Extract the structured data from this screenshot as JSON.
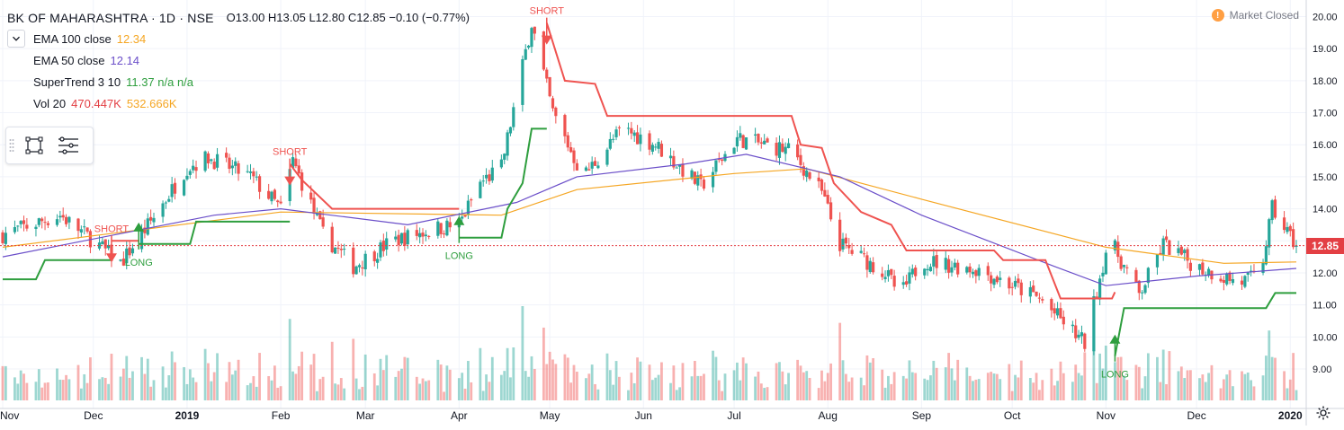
{
  "header": {
    "symbol": "BK OF MAHARASHTRA",
    "interval": "1D",
    "exchange": "NSE",
    "ohlc": "O13.00  H13.05  L12.80  C12.85  −0.10 (−0.77%)"
  },
  "indicators": [
    {
      "label": "EMA 100 close",
      "value": "12.34",
      "color": "#f5a623"
    },
    {
      "label": "EMA 50 close",
      "value": "12.14",
      "color": "#6b4fc9"
    },
    {
      "label": "SuperTrend 3 10",
      "value": "11.37  n/a  n/a",
      "color": "#2e9e3e",
      "value2_color": "#e33f44"
    },
    {
      "label": "Vol 20",
      "value": "470.447K",
      "value2": "532.666K",
      "color": "#e33f44",
      "value2_color": "#f5a623"
    }
  ],
  "status": {
    "text": "Market Closed",
    "icon": "exclamation-icon"
  },
  "last_price": "12.85",
  "colors": {
    "up": "#26a69a",
    "down": "#ef5350",
    "ema100": "#f5a623",
    "ema50": "#6b4fc9",
    "st_up": "#2e9e3e",
    "st_down": "#ef5350"
  },
  "chart_data": {
    "type": "candlestick",
    "title": "BK OF MAHARASHTRA · 1D · NSE",
    "y_ticks": [
      "20.00",
      "19.00",
      "18.00",
      "17.00",
      "16.00",
      "15.00",
      "14.00",
      "13.00",
      "12.00",
      "11.00",
      "10.00",
      "9.00"
    ],
    "x_ticks": [
      "Nov",
      "Dec",
      "2019",
      "Feb",
      "Mar",
      "Apr",
      "May",
      "Jun",
      "Jul",
      "Aug",
      "Sep",
      "Oct",
      "Nov",
      "Dec",
      "2020"
    ],
    "ylim": [
      8.2,
      20.3
    ],
    "last_close": 12.85,
    "anchors": [
      {
        "date": "2018-11-01",
        "close": 13.2
      },
      {
        "date": "2018-11-20",
        "close": 13.8
      },
      {
        "date": "2018-12-01",
        "close": 13.0
      },
      {
        "date": "2018-12-10",
        "close": 12.3
      },
      {
        "date": "2018-12-20",
        "close": 13.6
      },
      {
        "date": "2019-01-01",
        "close": 15.3
      },
      {
        "date": "2019-01-08",
        "close": 15.6
      },
      {
        "date": "2019-01-22",
        "close": 15.0
      },
      {
        "date": "2019-02-01",
        "close": 14.0
      },
      {
        "date": "2019-02-05",
        "close": 15.5
      },
      {
        "date": "2019-02-15",
        "close": 13.2
      },
      {
        "date": "2019-02-25",
        "close": 12.2
      },
      {
        "date": "2019-03-10",
        "close": 13.0
      },
      {
        "date": "2019-03-25",
        "close": 13.4
      },
      {
        "date": "2019-04-01",
        "close": 13.5
      },
      {
        "date": "2019-04-08",
        "close": 14.8
      },
      {
        "date": "2019-04-15",
        "close": 15.3
      },
      {
        "date": "2019-04-25",
        "close": 19.8
      },
      {
        "date": "2019-05-02",
        "close": 17.0
      },
      {
        "date": "2019-05-12",
        "close": 15.0
      },
      {
        "date": "2019-05-25",
        "close": 16.5
      },
      {
        "date": "2019-06-05",
        "close": 16.0
      },
      {
        "date": "2019-06-20",
        "close": 14.7
      },
      {
        "date": "2019-07-02",
        "close": 16.2
      },
      {
        "date": "2019-07-20",
        "close": 15.8
      },
      {
        "date": "2019-07-30",
        "close": 14.5
      },
      {
        "date": "2019-08-05",
        "close": 12.9
      },
      {
        "date": "2019-08-20",
        "close": 12.0
      },
      {
        "date": "2019-08-25",
        "close": 11.3
      },
      {
        "date": "2019-09-01",
        "close": 12.4
      },
      {
        "date": "2019-09-20",
        "close": 12.1
      },
      {
        "date": "2019-10-10",
        "close": 11.2
      },
      {
        "date": "2019-10-25",
        "close": 9.8
      },
      {
        "date": "2019-11-02",
        "close": 13.1
      },
      {
        "date": "2019-11-12",
        "close": 11.3
      },
      {
        "date": "2019-11-20",
        "close": 12.9
      },
      {
        "date": "2019-12-01",
        "close": 12.2
      },
      {
        "date": "2019-12-15",
        "close": 11.7
      },
      {
        "date": "2019-12-22",
        "close": 11.9
      },
      {
        "date": "2019-12-26",
        "close": 14.0
      },
      {
        "date": "2020-01-03",
        "close": 12.85
      }
    ],
    "ema100": [
      {
        "date": "2018-11-01",
        "value": 12.8
      },
      {
        "date": "2019-02-01",
        "value": 13.9
      },
      {
        "date": "2019-04-15",
        "value": 13.8
      },
      {
        "date": "2019-05-10",
        "value": 14.6
      },
      {
        "date": "2019-07-01",
        "value": 15.1
      },
      {
        "date": "2019-07-25",
        "value": 15.25
      },
      {
        "date": "2019-09-01",
        "value": 14.3
      },
      {
        "date": "2019-11-01",
        "value": 12.8
      },
      {
        "date": "2019-12-10",
        "value": 12.3
      },
      {
        "date": "2020-01-03",
        "value": 12.34
      }
    ],
    "ema50": [
      {
        "date": "2018-11-01",
        "value": 12.5
      },
      {
        "date": "2019-01-10",
        "value": 13.8
      },
      {
        "date": "2019-02-01",
        "value": 14.0
      },
      {
        "date": "2019-03-15",
        "value": 13.5
      },
      {
        "date": "2019-04-20",
        "value": 14.2
      },
      {
        "date": "2019-05-10",
        "value": 15.0
      },
      {
        "date": "2019-06-15",
        "value": 15.4
      },
      {
        "date": "2019-07-05",
        "value": 15.7
      },
      {
        "date": "2019-08-05",
        "value": 15.0
      },
      {
        "date": "2019-09-01",
        "value": 13.8
      },
      {
        "date": "2019-10-15",
        "value": 12.2
      },
      {
        "date": "2019-11-01",
        "value": 11.6
      },
      {
        "date": "2019-12-01",
        "value": 11.9
      },
      {
        "date": "2020-01-03",
        "value": 12.14
      }
    ],
    "supertrend": [
      {
        "dir": "up",
        "points": [
          [
            "2018-11-01",
            11.8
          ],
          [
            "2018-11-12",
            11.8
          ],
          [
            "2018-11-15",
            12.4
          ],
          [
            "2018-12-07",
            12.4
          ]
        ]
      },
      {
        "dir": "down",
        "points": [
          [
            "2018-12-07",
            13.0
          ],
          [
            "2018-12-16",
            13.0
          ]
        ]
      },
      {
        "dir": "up",
        "points": [
          [
            "2018-12-16",
            12.9
          ],
          [
            "2019-01-02",
            12.9
          ],
          [
            "2019-01-04",
            13.6
          ],
          [
            "2019-02-04",
            13.6
          ]
        ]
      },
      {
        "dir": "down",
        "points": [
          [
            "2019-02-04",
            15.4
          ],
          [
            "2019-02-08",
            14.9
          ],
          [
            "2019-02-18",
            14.0
          ],
          [
            "2019-04-01",
            14.0
          ]
        ]
      },
      {
        "dir": "up",
        "points": [
          [
            "2019-04-01",
            13.1
          ],
          [
            "2019-04-15",
            13.1
          ],
          [
            "2019-04-17",
            14.0
          ],
          [
            "2019-04-22",
            14.8
          ],
          [
            "2019-04-25",
            16.5
          ],
          [
            "2019-04-30",
            16.5
          ]
        ]
      },
      {
        "dir": "down",
        "points": [
          [
            "2019-04-30",
            19.8
          ],
          [
            "2019-05-06",
            18.0
          ],
          [
            "2019-05-16",
            17.9
          ],
          [
            "2019-05-20",
            16.9
          ],
          [
            "2019-07-20",
            16.9
          ],
          [
            "2019-07-23",
            16.0
          ],
          [
            "2019-07-30",
            15.9
          ],
          [
            "2019-08-03",
            14.8
          ],
          [
            "2019-08-12",
            13.9
          ],
          [
            "2019-08-22",
            13.5
          ],
          [
            "2019-08-27",
            12.7
          ],
          [
            "2019-09-25",
            12.7
          ],
          [
            "2019-09-28",
            12.4
          ],
          [
            "2019-10-12",
            12.4
          ],
          [
            "2019-10-17",
            11.2
          ],
          [
            "2019-11-03",
            11.2
          ],
          [
            "2019-11-04",
            11.4
          ]
        ]
      },
      {
        "dir": "up",
        "points": [
          [
            "2019-11-04",
            9.4
          ],
          [
            "2019-11-07",
            10.9
          ],
          [
            "2019-12-24",
            10.9
          ],
          [
            "2019-12-27",
            11.37
          ],
          [
            "2020-01-03",
            11.37
          ]
        ]
      }
    ],
    "signals": [
      {
        "label": "SHORT",
        "type": "short",
        "date": "2018-12-07",
        "price": 13.0
      },
      {
        "label": "LONG",
        "type": "long",
        "date": "2018-12-16",
        "price": 12.9
      },
      {
        "label": "SHORT",
        "type": "short",
        "date": "2019-02-04",
        "price": 15.4
      },
      {
        "label": "LONG",
        "type": "long",
        "date": "2019-04-01",
        "price": 13.1
      },
      {
        "label": "SHORT",
        "type": "short",
        "date": "2019-04-30",
        "price": 19.8
      },
      {
        "label": "LONG",
        "type": "long",
        "date": "2019-11-04",
        "price": 9.4
      }
    ]
  }
}
